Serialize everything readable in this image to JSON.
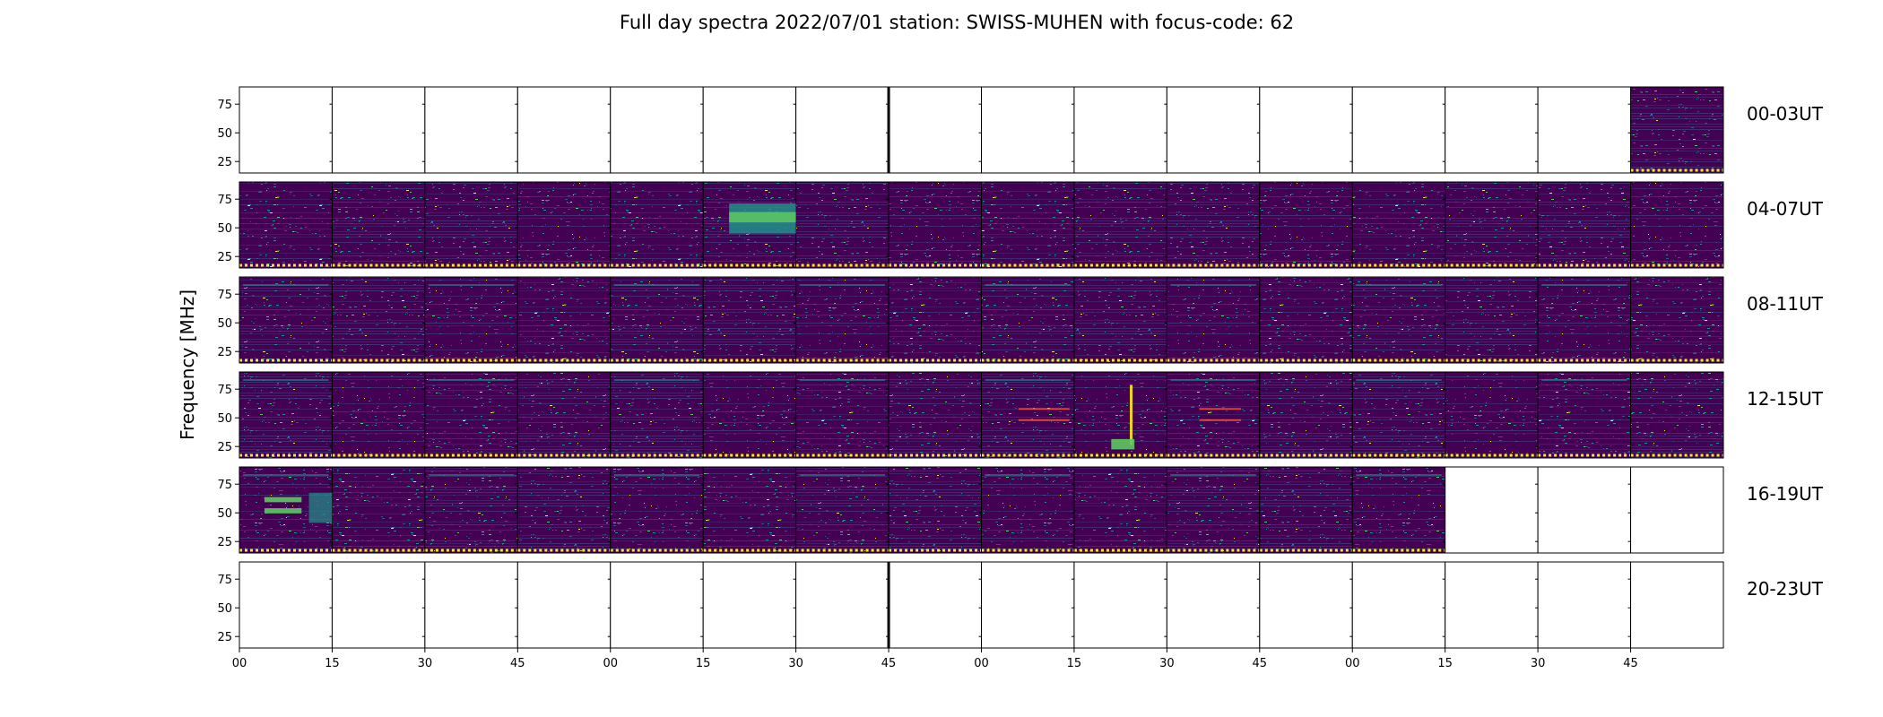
{
  "chart_data": {
    "type": "heatmap",
    "title": "Full day spectra 2022/07/01 station: SWISS-MUHEN with focus-code: 62",
    "xlabel": "",
    "ylabel": "Frequency [MHz]",
    "y_ticks": [
      "25",
      "50",
      "75"
    ],
    "ylim": [
      15,
      90
    ],
    "x_ticks": [
      "00",
      "15",
      "30",
      "45",
      "00",
      "15",
      "30",
      "45",
      "00",
      "15",
      "30",
      "45",
      "00",
      "15",
      "30",
      "45"
    ],
    "minutes_per_panel": 15,
    "panels_per_row": 16,
    "colormap": [
      "#440154",
      "#3b528b",
      "#21918c",
      "#5ec962",
      "#fde725"
    ],
    "rows": [
      {
        "label": "00-03UT",
        "filled": [
          0,
          0,
          0,
          0,
          0,
          0,
          0,
          0,
          0,
          0,
          0,
          0,
          0,
          0,
          0,
          1
        ]
      },
      {
        "label": "04-07UT",
        "filled": [
          1,
          1,
          1,
          1,
          1,
          1,
          1,
          1,
          1,
          1,
          1,
          1,
          1,
          1,
          1,
          1
        ]
      },
      {
        "label": "08-11UT",
        "filled": [
          1,
          1,
          1,
          1,
          1,
          1,
          1,
          1,
          1,
          1,
          1,
          1,
          1,
          1,
          1,
          1
        ]
      },
      {
        "label": "12-15UT",
        "filled": [
          1,
          1,
          1,
          1,
          1,
          1,
          1,
          1,
          1,
          1,
          1,
          1,
          1,
          1,
          1,
          1
        ]
      },
      {
        "label": "16-19UT",
        "filled": [
          1,
          1,
          1,
          1,
          1,
          1,
          1,
          1,
          1,
          1,
          1,
          1,
          1,
          0,
          0,
          0
        ]
      },
      {
        "label": "20-23UT",
        "filled": [
          0,
          0,
          0,
          0,
          0,
          0,
          0,
          0,
          0,
          0,
          0,
          0,
          0,
          0,
          0,
          0
        ]
      }
    ]
  }
}
